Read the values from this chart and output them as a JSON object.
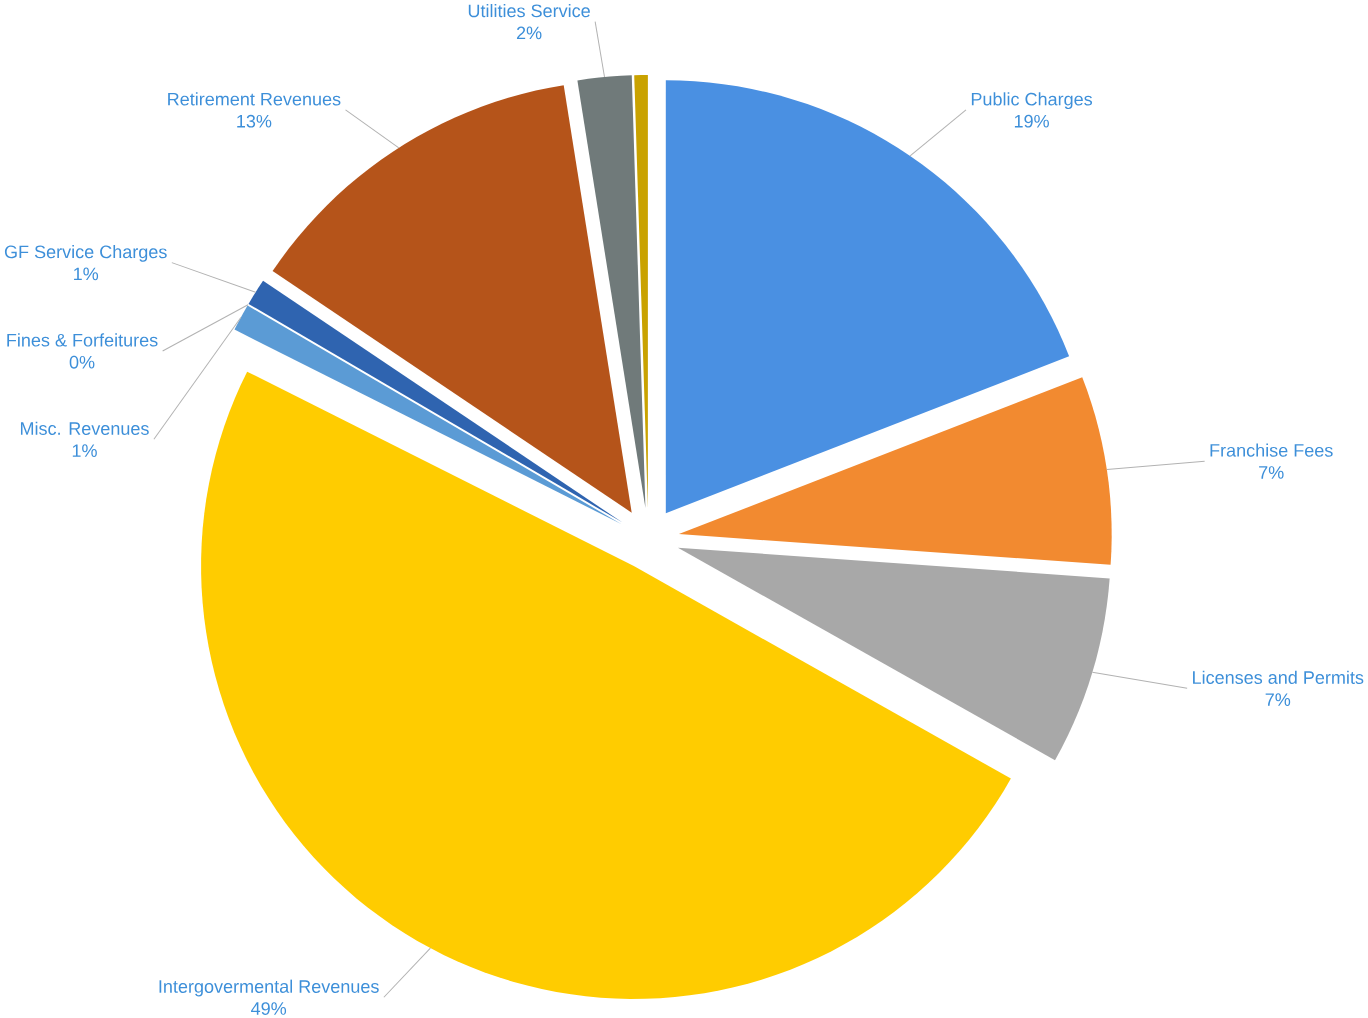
{
  "chart_data": {
    "type": "pie",
    "categories": [
      "Public Charges",
      "Franchise Fees",
      "Licenses and Permits",
      "Intergovermental Revenues",
      "Misc. Revenues",
      "Fines & Forfeitures",
      "GF Service Charges",
      "Retirement Revenues",
      "Utilities Service",
      null
    ],
    "values": [
      19,
      7,
      7,
      49,
      1,
      0,
      1,
      13,
      2,
      0.5
    ],
    "value_labels": [
      "19%",
      "7%",
      "7%",
      "49%",
      "1%",
      "0%",
      "1%",
      "13%",
      "2%",
      null
    ],
    "colors": [
      "#4a90e2",
      "#f28a30",
      "#a8a8a8",
      "#ffcc00",
      "#5b9bd5",
      "#264f8c",
      "#2f64b0",
      "#b5541a",
      "#707a7a",
      "#c9a200"
    ]
  }
}
